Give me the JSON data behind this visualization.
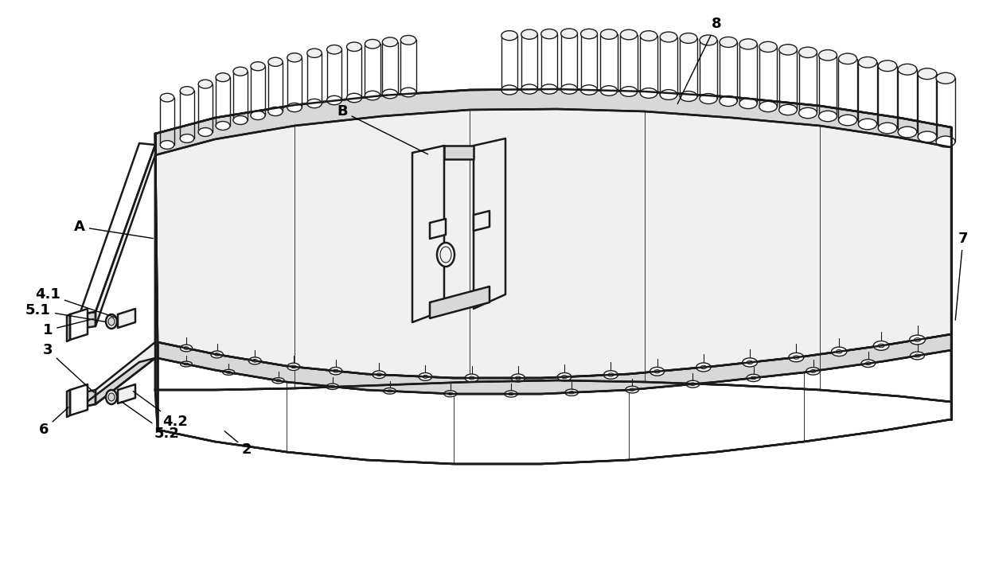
{
  "bg_color": "#ffffff",
  "line_color": "#1a1a1a",
  "fill_light": "#f0f0f0",
  "fill_mid": "#d8d8d8",
  "fill_dark": "#b8b8b8",
  "fill_white": "#ffffff",
  "lw_main": 1.8,
  "lw_thin": 1.0,
  "font_size": 13,
  "labels": [
    "A",
    "B",
    "1",
    "2",
    "3",
    "4.1",
    "4.2",
    "5.1",
    "5.2",
    "6",
    "7",
    "8"
  ]
}
